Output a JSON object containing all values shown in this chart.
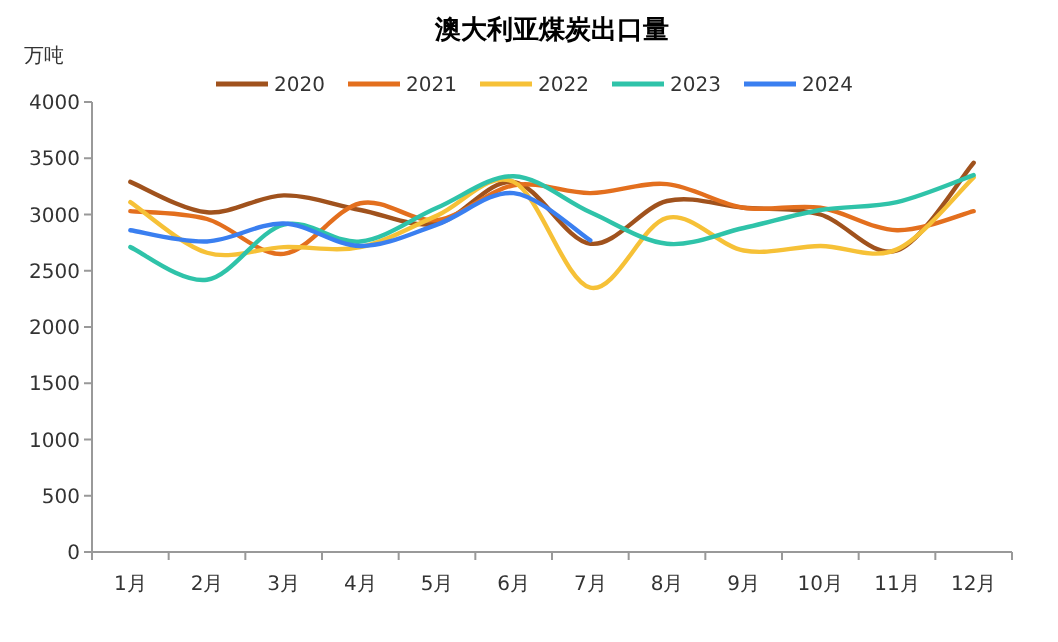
{
  "chart_data": {
    "type": "line",
    "title": "澳大利亚煤炭出口量",
    "ylabel": "万吨",
    "categories": [
      "1月",
      "2月",
      "3月",
      "4月",
      "5月",
      "6月",
      "7月",
      "8月",
      "9月",
      "10月",
      "11月",
      "12月"
    ],
    "series": [
      {
        "name": "2020",
        "color": "#a0521d",
        "values": [
          3290,
          3020,
          3170,
          3040,
          2920,
          3290,
          2740,
          3120,
          3060,
          3000,
          2680,
          3460
        ]
      },
      {
        "name": "2021",
        "color": "#e36f1e",
        "values": [
          3030,
          2960,
          2650,
          3100,
          2950,
          3260,
          3190,
          3270,
          3060,
          3060,
          2860,
          3030
        ]
      },
      {
        "name": "2022",
        "color": "#f6c137",
        "values": [
          3110,
          2660,
          2710,
          2710,
          2990,
          3290,
          2350,
          2970,
          2680,
          2720,
          2690,
          3330
        ]
      },
      {
        "name": "2023",
        "color": "#2fc3a9",
        "values": [
          2710,
          2420,
          2910,
          2760,
          3060,
          3340,
          3020,
          2740,
          2880,
          3040,
          3110,
          3350
        ]
      },
      {
        "name": "2024",
        "color": "#3a7ff0",
        "values": [
          2860,
          2760,
          2920,
          2720,
          2910,
          3190,
          2770,
          null,
          null,
          null,
          null,
          null
        ]
      }
    ],
    "ylim": [
      0,
      4000
    ],
    "yticks": [
      0,
      500,
      1000,
      1500,
      2000,
      2500,
      3000,
      3500,
      4000
    ],
    "legend": "top",
    "grid": false,
    "marker": "none",
    "line_style": "solid"
  }
}
